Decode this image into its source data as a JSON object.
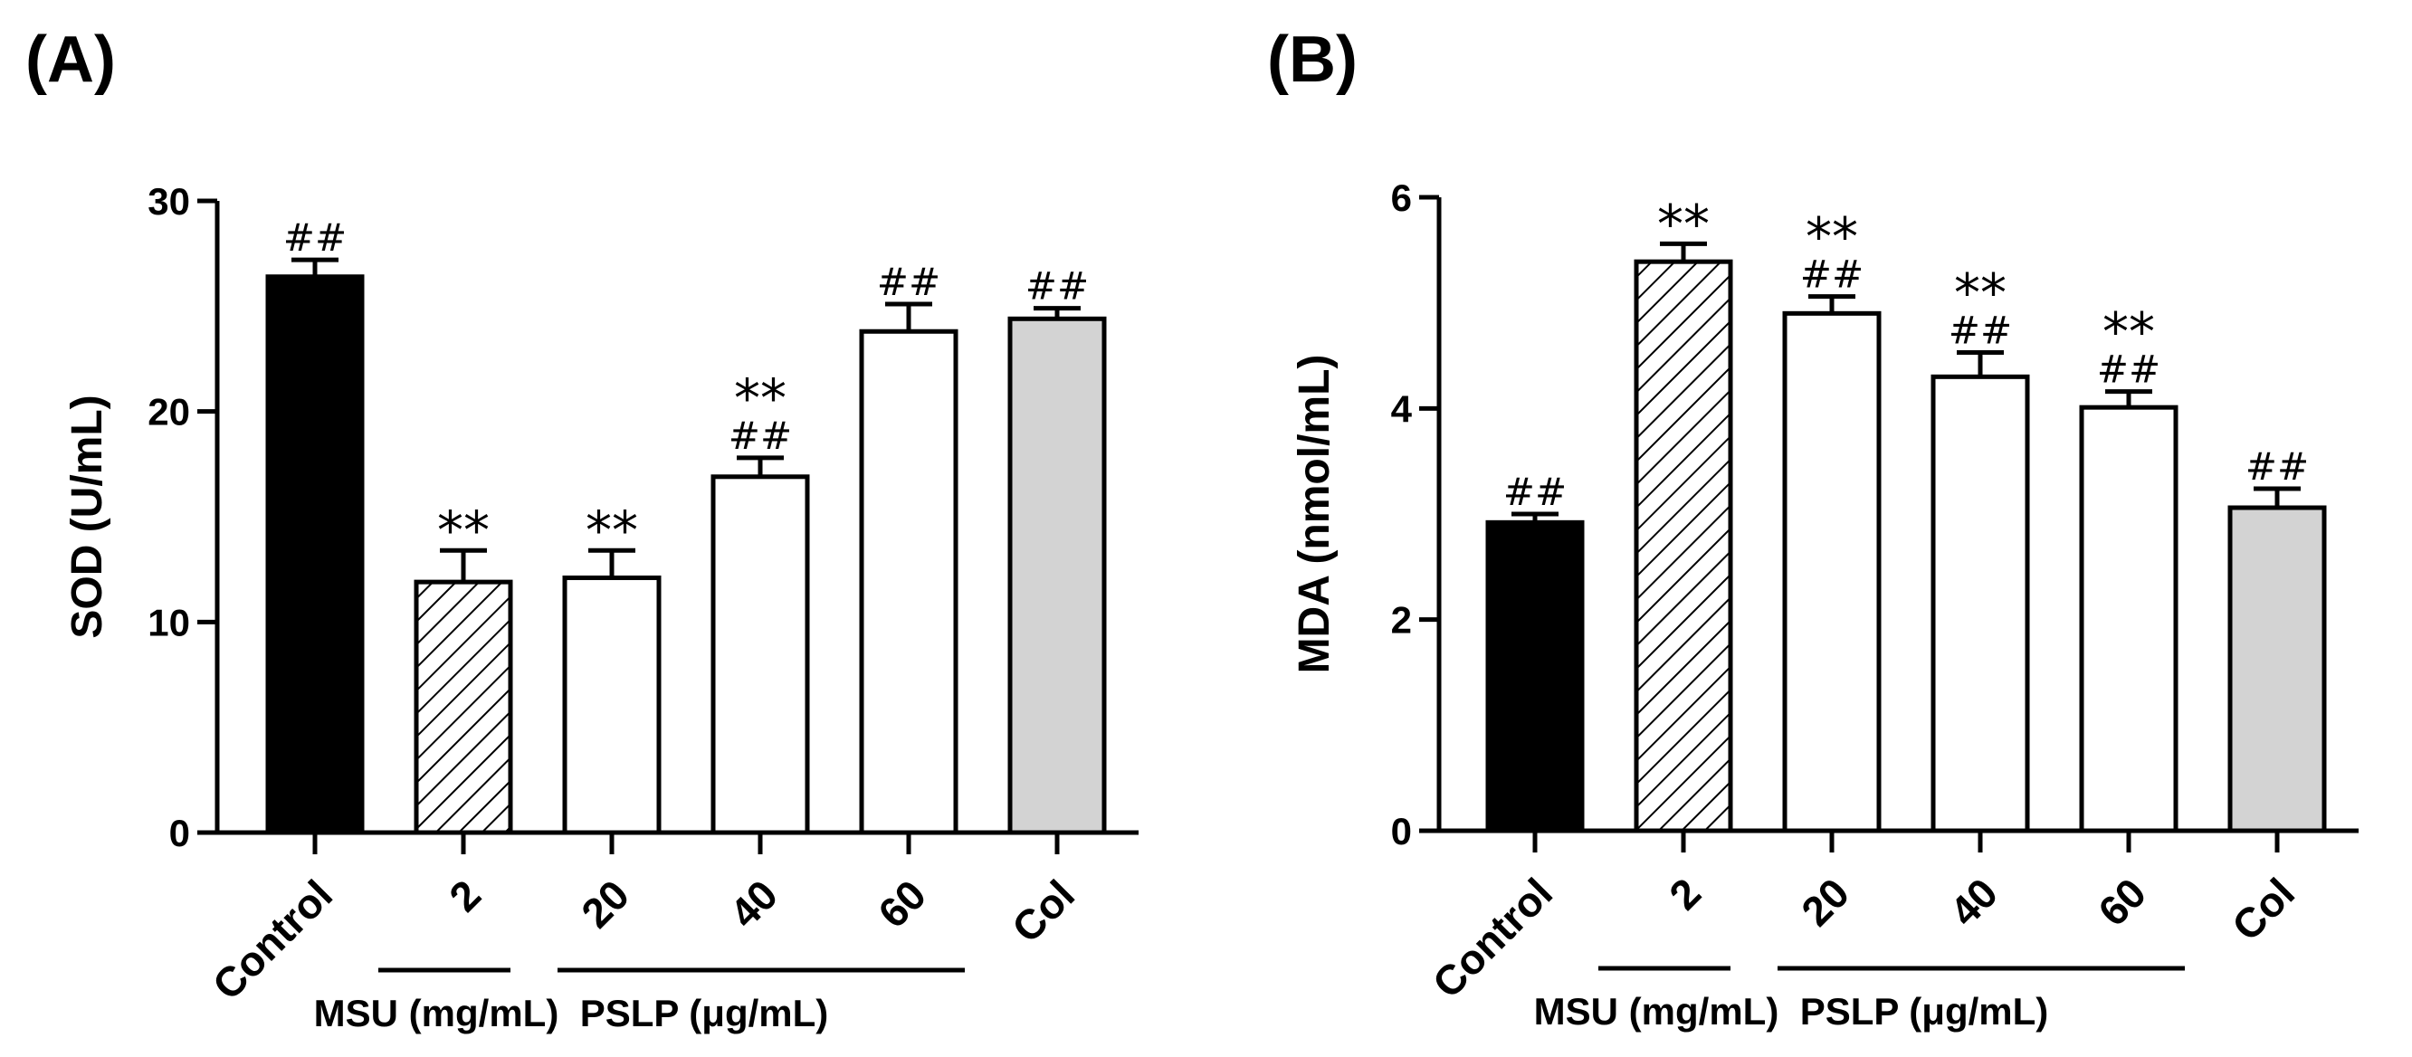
{
  "chart_data": [
    {
      "type": "bar",
      "panel_label": "(A)",
      "title": "",
      "xlabel": "",
      "ylabel": "SOD (U/mL)",
      "ylim": [
        0,
        30
      ],
      "yticks": [
        0,
        10,
        20,
        30
      ],
      "categories": [
        "Control",
        "2",
        "20",
        "40",
        "60",
        "Col"
      ],
      "values": [
        26.4,
        11.9,
        12.1,
        16.9,
        23.8,
        24.4
      ],
      "errors": [
        0.8,
        1.5,
        1.3,
        0.9,
        1.3,
        0.5
      ],
      "fills": [
        "black",
        "hatch",
        "white",
        "white",
        "white",
        "gray"
      ],
      "annotations": [
        {
          "stars": "",
          "hash": "##"
        },
        {
          "stars": "**",
          "hash": ""
        },
        {
          "stars": "**",
          "hash": ""
        },
        {
          "stars": "**",
          "hash": "##"
        },
        {
          "stars": "",
          "hash": "##"
        },
        {
          "stars": "",
          "hash": "##"
        }
      ],
      "groups": [
        {
          "label": "MSU (mg/mL)",
          "from": 1,
          "to": 1
        },
        {
          "label": "PSLP (μg/mL)",
          "from": 2,
          "to": 4
        }
      ],
      "grid": false,
      "legend": "none"
    },
    {
      "type": "bar",
      "panel_label": "(B)",
      "title": "",
      "xlabel": "",
      "ylabel": "MDA (nmol/mL)",
      "ylim": [
        0,
        6
      ],
      "yticks": [
        0,
        2,
        4,
        6
      ],
      "categories": [
        "Control",
        "2",
        "20",
        "40",
        "60",
        "Col"
      ],
      "values": [
        2.92,
        5.39,
        4.9,
        4.3,
        4.01,
        3.06
      ],
      "errors": [
        0.08,
        0.17,
        0.16,
        0.23,
        0.15,
        0.18
      ],
      "fills": [
        "black",
        "hatch",
        "white",
        "white",
        "white",
        "gray"
      ],
      "annotations": [
        {
          "stars": "",
          "hash": "##"
        },
        {
          "stars": "**",
          "hash": ""
        },
        {
          "stars": "**",
          "hash": "##"
        },
        {
          "stars": "**",
          "hash": "##"
        },
        {
          "stars": "**",
          "hash": "##"
        },
        {
          "stars": "",
          "hash": "##"
        }
      ],
      "groups": [
        {
          "label": "MSU (mg/mL)",
          "from": 1,
          "to": 1
        },
        {
          "label": "PSLP (μg/mL)",
          "from": 2,
          "to": 4
        }
      ],
      "grid": false,
      "legend": "none"
    }
  ],
  "colors": {
    "black": "#000000",
    "white": "#ffffff",
    "gray": "#d3d3d3",
    "stroke": "#000000"
  }
}
